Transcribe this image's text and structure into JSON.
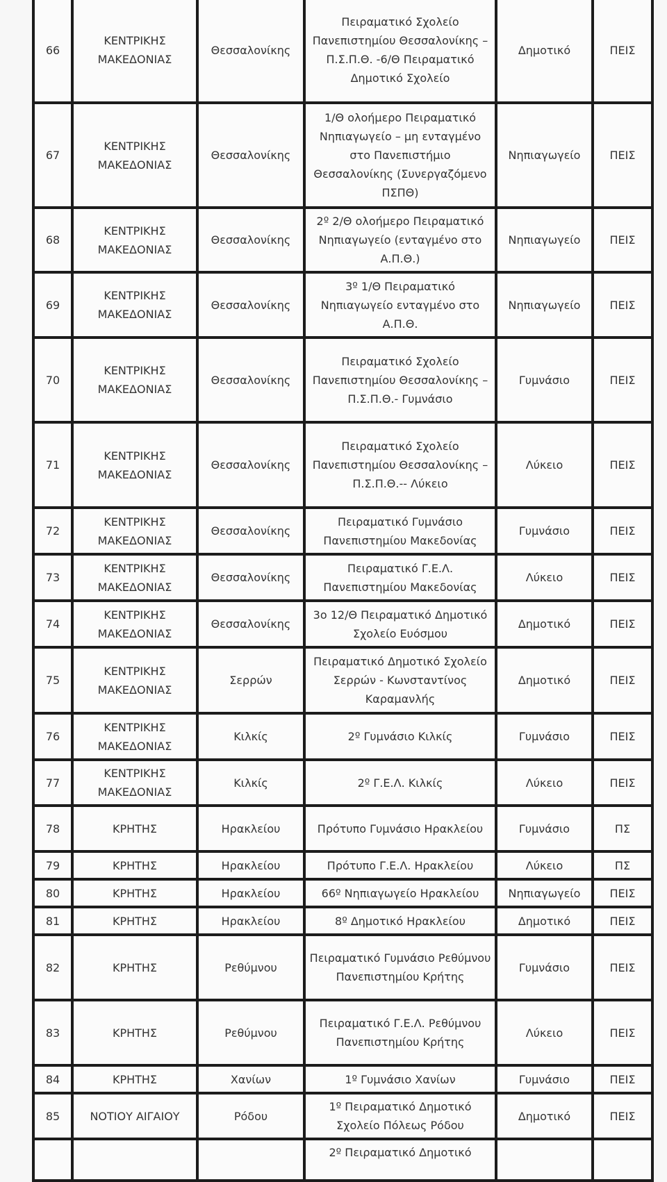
{
  "rows": [
    {
      "no": "66",
      "region": "ΚΕΝΤΡΙΚΗΣ ΜΑΚΕΔΟΝΙΑΣ",
      "area": "Θεσσαλονίκης",
      "school": "Πειραματικό Σχολείο Πανεπιστημίου Θεσσαλονίκης – Π.Σ.Π.Θ. -6/Θ Πειραματικό Δημοτικό Σχολείο",
      "level": "Δημοτικό",
      "type": "ΠΕΙΣ"
    },
    {
      "no": "67",
      "region": "ΚΕΝΤΡΙΚΗΣ ΜΑΚΕΔΟΝΙΑΣ",
      "area": "Θεσσαλονίκης",
      "school": "1/Θ ολοήμερο Πειραματικό Νηπιαγωγείο – μη ενταγμένο στο Πανεπιστήμιο Θεσσαλονίκης (Συνεργαζόμενο ΠΣΠΘ)",
      "level": "Νηπιαγωγείο",
      "type": "ΠΕΙΣ"
    },
    {
      "no": "68",
      "region": "ΚΕΝΤΡΙΚΗΣ ΜΑΚΕΔΟΝΙΑΣ",
      "area": "Θεσσαλονίκης",
      "school": "2º 2/Θ ολοήμερο Πειραματικό Νηπιαγωγείο (ενταγμένο στο Α.Π.Θ.)",
      "level": "Νηπιαγωγείο",
      "type": "ΠΕΙΣ"
    },
    {
      "no": "69",
      "region": "ΚΕΝΤΡΙΚΗΣ ΜΑΚΕΔΟΝΙΑΣ",
      "area": "Θεσσαλονίκης",
      "school": "3º 1/Θ Πειραματικό Νηπιαγωγείο ενταγμένο στο Α.Π.Θ.",
      "level": "Νηπιαγωγείο",
      "type": "ΠΕΙΣ"
    },
    {
      "no": "70",
      "region": "ΚΕΝΤΡΙΚΗΣ ΜΑΚΕΔΟΝΙΑΣ",
      "area": "Θεσσαλονίκης",
      "school": "Πειραματικό Σχολείο Πανεπιστημίου Θεσσαλονίκης – Π.Σ.Π.Θ.- Γυμνάσιο",
      "level": "Γυμνάσιο",
      "type": "ΠΕΙΣ"
    },
    {
      "no": "71",
      "region": "ΚΕΝΤΡΙΚΗΣ ΜΑΚΕΔΟΝΙΑΣ",
      "area": "Θεσσαλονίκης",
      "school": "Πειραματικό Σχολείο Πανεπιστημίου Θεσσαλονίκης – Π.Σ.Π.Θ.-- Λύκειο",
      "level": "Λύκειο",
      "type": "ΠΕΙΣ"
    },
    {
      "no": "72",
      "region": "ΚΕΝΤΡΙΚΗΣ ΜΑΚΕΔΟΝΙΑΣ",
      "area": "Θεσσαλονίκης",
      "school": "Πειραματικό Γυμνάσιο Πανεπιστημίου Μακεδονίας",
      "level": "Γυμνάσιο",
      "type": "ΠΕΙΣ"
    },
    {
      "no": "73",
      "region": "ΚΕΝΤΡΙΚΗΣ ΜΑΚΕΔΟΝΙΑΣ",
      "area": "Θεσσαλονίκης",
      "school": "Πειραματικό Γ.Ε.Λ. Πανεπιστημίου Μακεδονίας",
      "level": "Λύκειο",
      "type": "ΠΕΙΣ"
    },
    {
      "no": "74",
      "region": "ΚΕΝΤΡΙΚΗΣ ΜΑΚΕΔΟΝΙΑΣ",
      "area": "Θεσσαλονίκης",
      "school": "3ο 12/Θ Πειραματικό Δημοτικό Σχολείο Ευόσμου",
      "level": "Δημοτικό",
      "type": "ΠΕΙΣ"
    },
    {
      "no": "75",
      "region": "ΚΕΝΤΡΙΚΗΣ ΜΑΚΕΔΟΝΙΑΣ",
      "area": "Σερρών",
      "school": "Πειραματικό Δημοτικό Σχολείο Σερρών - Κωνσταντίνος Καραμανλής",
      "level": "Δημοτικό",
      "type": "ΠΕΙΣ"
    },
    {
      "no": "76",
      "region": "ΚΕΝΤΡΙΚΗΣ ΜΑΚΕΔΟΝΙΑΣ",
      "area": "Κιλκίς",
      "school": "2º Γυμνάσιο Κιλκίς",
      "level": "Γυμνάσιο",
      "type": "ΠΕΙΣ"
    },
    {
      "no": "77",
      "region": "ΚΕΝΤΡΙΚΗΣ ΜΑΚΕΔΟΝΙΑΣ",
      "area": "Κιλκίς",
      "school": "2º Γ.Ε.Λ. Κιλκίς",
      "level": "Λύκειο",
      "type": "ΠΕΙΣ"
    },
    {
      "no": "78",
      "region": "ΚΡΗΤΗΣ",
      "area": "Ηρακλείου",
      "school": "Πρότυπο Γυμνάσιο Ηρακλείου",
      "level": "Γυμνάσιο",
      "type": "ΠΣ"
    },
    {
      "no": "79",
      "region": "ΚΡΗΤΗΣ",
      "area": "Ηρακλείου",
      "school": "Πρότυπο Γ.Ε.Λ. Ηρακλείου",
      "level": "Λύκειο",
      "type": "ΠΣ"
    },
    {
      "no": "80",
      "region": "ΚΡΗΤΗΣ",
      "area": "Ηρακλείου",
      "school": "66º Νηπιαγωγείο Ηρακλείου",
      "level": "Νηπιαγωγείο",
      "type": "ΠΕΙΣ"
    },
    {
      "no": "81",
      "region": "ΚΡΗΤΗΣ",
      "area": "Ηρακλείου",
      "school": "8º Δημοτικό Ηρακλείου",
      "level": "Δημοτικό",
      "type": "ΠΕΙΣ"
    },
    {
      "no": "82",
      "region": "ΚΡΗΤΗΣ",
      "area": "Ρεθύμνου",
      "school": "Πειραματικό Γυμνάσιο Ρεθύμνου Πανεπιστημίου Κρήτης",
      "level": "Γυμνάσιο",
      "type": "ΠΕΙΣ"
    },
    {
      "no": "83",
      "region": "ΚΡΗΤΗΣ",
      "area": "Ρεθύμνου",
      "school": "Πειραματικό Γ.Ε.Λ. Ρεθύμνου Πανεπιστημίου Κρήτης",
      "level": "Λύκειο",
      "type": "ΠΕΙΣ"
    },
    {
      "no": "84",
      "region": "ΚΡΗΤΗΣ",
      "area": "Χανίων",
      "school": "1º Γυμνάσιο Χανίων",
      "level": "Γυμνάσιο",
      "type": "ΠΕΙΣ"
    },
    {
      "no": "85",
      "region": "ΝΟΤΙΟΥ ΑΙΓΑΙΟΥ",
      "area": "Ρόδου",
      "school": "1º Πειραματικό Δημοτικό Σχολείο Πόλεως Ρόδου",
      "level": "Δημοτικό",
      "type": "ΠΕΙΣ"
    },
    {
      "no": "",
      "region": "",
      "area": "",
      "school": "2º Πειραματικό Δημοτικό",
      "level": "",
      "type": ""
    }
  ]
}
